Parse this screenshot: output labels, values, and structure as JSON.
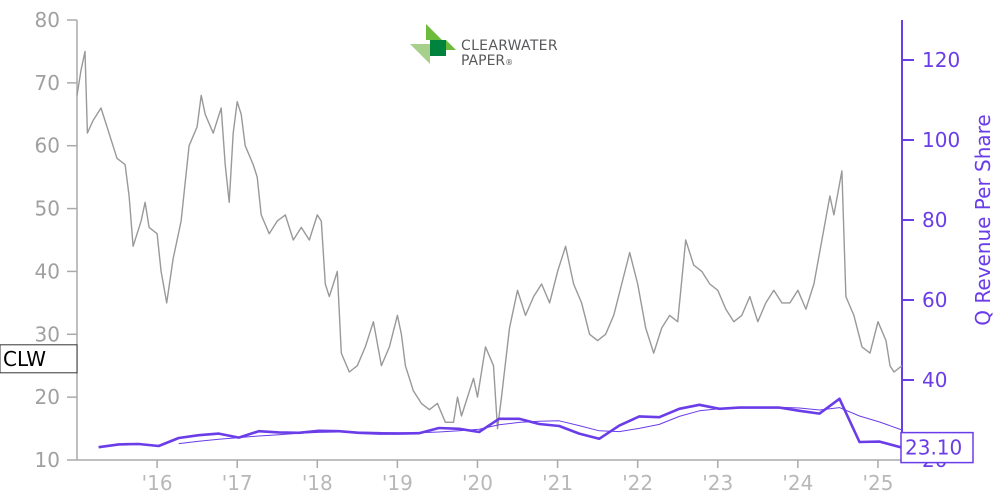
{
  "logo": {
    "line1": "CLEARWATER",
    "line2": "PAPER",
    "mark": "®",
    "colors": [
      "#6cbb3c",
      "#00843d",
      "#a8d08d"
    ]
  },
  "chart_data": {
    "type": "line",
    "ticker_label": "CLW",
    "last_value_label": "23.10",
    "ylabel_right": "Q Revenue Per Share",
    "x_ticks": [
      "'16",
      "'17",
      "'18",
      "'19",
      "'20",
      "'21",
      "'22",
      "'23",
      "'24",
      "'25"
    ],
    "x_tick_years": [
      2016,
      2017,
      2018,
      2019,
      2020,
      2021,
      2022,
      2023,
      2024,
      2025
    ],
    "xlim": [
      2015.0,
      2025.3
    ],
    "y_left": {
      "ylim": [
        10,
        80
      ],
      "ticks": [
        10,
        20,
        30,
        40,
        50,
        60,
        70,
        80
      ]
    },
    "y_right": {
      "ylim": [
        20,
        130
      ],
      "ticks": [
        20,
        40,
        60,
        80,
        100,
        120
      ]
    },
    "colors": {
      "price": "#999999",
      "revenue": "#6a3de8",
      "axis_left": "#aaaaaa",
      "axis_right": "#6a3de8"
    },
    "series": [
      {
        "axis": "left",
        "color": "#999999",
        "points": [
          [
            2015.0,
            68
          ],
          [
            2015.05,
            72
          ],
          [
            2015.1,
            75
          ],
          [
            2015.13,
            62
          ],
          [
            2015.2,
            64
          ],
          [
            2015.3,
            66
          ],
          [
            2015.4,
            62
          ],
          [
            2015.5,
            58
          ],
          [
            2015.6,
            57
          ],
          [
            2015.65,
            52
          ],
          [
            2015.7,
            44
          ],
          [
            2015.8,
            48
          ],
          [
            2015.85,
            51
          ],
          [
            2015.9,
            47
          ],
          [
            2016.0,
            46
          ],
          [
            2016.05,
            40
          ],
          [
            2016.12,
            35
          ],
          [
            2016.2,
            42
          ],
          [
            2016.3,
            48
          ],
          [
            2016.4,
            60
          ],
          [
            2016.5,
            63
          ],
          [
            2016.55,
            68
          ],
          [
            2016.6,
            65
          ],
          [
            2016.7,
            62
          ],
          [
            2016.8,
            66
          ],
          [
            2016.85,
            57
          ],
          [
            2016.9,
            51
          ],
          [
            2016.95,
            62
          ],
          [
            2017.0,
            67
          ],
          [
            2017.05,
            65
          ],
          [
            2017.1,
            60
          ],
          [
            2017.2,
            57
          ],
          [
            2017.25,
            55
          ],
          [
            2017.3,
            49
          ],
          [
            2017.4,
            46
          ],
          [
            2017.5,
            48
          ],
          [
            2017.6,
            49
          ],
          [
            2017.7,
            45
          ],
          [
            2017.8,
            47
          ],
          [
            2017.9,
            45
          ],
          [
            2018.0,
            49
          ],
          [
            2018.05,
            48
          ],
          [
            2018.1,
            38
          ],
          [
            2018.15,
            36
          ],
          [
            2018.2,
            38
          ],
          [
            2018.25,
            40
          ],
          [
            2018.3,
            27
          ],
          [
            2018.4,
            24
          ],
          [
            2018.5,
            25
          ],
          [
            2018.6,
            28
          ],
          [
            2018.7,
            32
          ],
          [
            2018.8,
            25
          ],
          [
            2018.9,
            28
          ],
          [
            2019.0,
            33
          ],
          [
            2019.05,
            30
          ],
          [
            2019.1,
            25
          ],
          [
            2019.15,
            23
          ],
          [
            2019.2,
            21
          ],
          [
            2019.3,
            19
          ],
          [
            2019.4,
            18
          ],
          [
            2019.5,
            19
          ],
          [
            2019.6,
            16
          ],
          [
            2019.7,
            16
          ],
          [
            2019.75,
            20
          ],
          [
            2019.8,
            17
          ],
          [
            2019.9,
            21
          ],
          [
            2019.95,
            23
          ],
          [
            2020.0,
            20
          ],
          [
            2020.1,
            28
          ],
          [
            2020.2,
            25
          ],
          [
            2020.25,
            15
          ],
          [
            2020.3,
            20
          ],
          [
            2020.4,
            31
          ],
          [
            2020.5,
            37
          ],
          [
            2020.6,
            33
          ],
          [
            2020.7,
            36
          ],
          [
            2020.8,
            38
          ],
          [
            2020.9,
            35
          ],
          [
            2021.0,
            40
          ],
          [
            2021.1,
            44
          ],
          [
            2021.2,
            38
          ],
          [
            2021.3,
            35
          ],
          [
            2021.4,
            30
          ],
          [
            2021.5,
            29
          ],
          [
            2021.6,
            30
          ],
          [
            2021.7,
            33
          ],
          [
            2021.8,
            38
          ],
          [
            2021.9,
            43
          ],
          [
            2022.0,
            38
          ],
          [
            2022.1,
            31
          ],
          [
            2022.2,
            27
          ],
          [
            2022.3,
            31
          ],
          [
            2022.4,
            33
          ],
          [
            2022.5,
            32
          ],
          [
            2022.6,
            45
          ],
          [
            2022.7,
            41
          ],
          [
            2022.8,
            40
          ],
          [
            2022.9,
            38
          ],
          [
            2023.0,
            37
          ],
          [
            2023.1,
            34
          ],
          [
            2023.2,
            32
          ],
          [
            2023.3,
            33
          ],
          [
            2023.4,
            36
          ],
          [
            2023.5,
            32
          ],
          [
            2023.6,
            35
          ],
          [
            2023.7,
            37
          ],
          [
            2023.8,
            35
          ],
          [
            2023.9,
            35
          ],
          [
            2024.0,
            37
          ],
          [
            2024.1,
            34
          ],
          [
            2024.2,
            38
          ],
          [
            2024.3,
            45
          ],
          [
            2024.4,
            52
          ],
          [
            2024.45,
            49
          ],
          [
            2024.55,
            56
          ],
          [
            2024.6,
            36
          ],
          [
            2024.7,
            33
          ],
          [
            2024.8,
            28
          ],
          [
            2024.9,
            27
          ],
          [
            2025.0,
            32
          ],
          [
            2025.1,
            29
          ],
          [
            2025.15,
            25
          ],
          [
            2025.2,
            24
          ],
          [
            2025.3,
            25
          ]
        ]
      },
      {
        "axis": "right",
        "color": "#6a3de8",
        "points": [
          [
            2015.27,
            23.2
          ],
          [
            2015.52,
            23.9
          ],
          [
            2015.77,
            24.0
          ],
          [
            2016.02,
            23.5
          ],
          [
            2016.27,
            25.5
          ],
          [
            2016.52,
            26.2
          ],
          [
            2016.77,
            26.6
          ],
          [
            2017.02,
            25.6
          ],
          [
            2017.27,
            27.2
          ],
          [
            2017.52,
            26.9
          ],
          [
            2017.77,
            26.8
          ],
          [
            2018.02,
            27.3
          ],
          [
            2018.27,
            27.2
          ],
          [
            2018.52,
            26.8
          ],
          [
            2018.77,
            26.6
          ],
          [
            2019.02,
            26.6
          ],
          [
            2019.27,
            26.7
          ],
          [
            2019.52,
            28.0
          ],
          [
            2019.77,
            27.8
          ],
          [
            2020.02,
            27.0
          ],
          [
            2020.27,
            30.3
          ],
          [
            2020.52,
            30.3
          ],
          [
            2020.77,
            29.0
          ],
          [
            2021.02,
            28.5
          ],
          [
            2021.27,
            26.6
          ],
          [
            2021.52,
            25.3
          ],
          [
            2021.77,
            28.6
          ],
          [
            2022.02,
            30.9
          ],
          [
            2022.27,
            30.7
          ],
          [
            2022.52,
            32.8
          ],
          [
            2022.77,
            33.8
          ],
          [
            2023.02,
            32.8
          ],
          [
            2023.27,
            33.1
          ],
          [
            2023.52,
            33.1
          ],
          [
            2023.77,
            33.1
          ],
          [
            2024.02,
            32.3
          ],
          [
            2024.27,
            31.6
          ],
          [
            2024.52,
            35.3
          ],
          [
            2024.77,
            24.5
          ],
          [
            2025.02,
            24.6
          ],
          [
            2025.3,
            23.1
          ]
        ]
      },
      {
        "axis": "right",
        "color": "#6a3de8",
        "points": [
          [
            2016.27,
            24.1
          ],
          [
            2016.52,
            24.7
          ],
          [
            2016.77,
            25.2
          ],
          [
            2017.02,
            25.6
          ],
          [
            2017.27,
            26.0
          ],
          [
            2017.52,
            26.3
          ],
          [
            2017.77,
            26.7
          ],
          [
            2018.02,
            26.9
          ],
          [
            2018.27,
            27.0
          ],
          [
            2018.52,
            27.0
          ],
          [
            2018.77,
            26.9
          ],
          [
            2019.02,
            26.8
          ],
          [
            2019.27,
            26.8
          ],
          [
            2019.52,
            27.0
          ],
          [
            2019.77,
            27.3
          ],
          [
            2020.02,
            27.7
          ],
          [
            2020.27,
            28.8
          ],
          [
            2020.52,
            29.4
          ],
          [
            2020.77,
            29.7
          ],
          [
            2021.02,
            29.8
          ],
          [
            2021.27,
            28.6
          ],
          [
            2021.52,
            27.3
          ],
          [
            2021.77,
            27.1
          ],
          [
            2022.02,
            27.9
          ],
          [
            2022.27,
            28.9
          ],
          [
            2022.52,
            30.9
          ],
          [
            2022.77,
            32.3
          ],
          [
            2023.02,
            32.8
          ],
          [
            2023.27,
            33.2
          ],
          [
            2023.52,
            33.2
          ],
          [
            2023.77,
            33.2
          ],
          [
            2024.02,
            33.0
          ],
          [
            2024.27,
            32.5
          ],
          [
            2024.52,
            33.1
          ],
          [
            2024.77,
            31.0
          ],
          [
            2025.02,
            29.5
          ],
          [
            2025.3,
            27.5
          ]
        ]
      }
    ]
  }
}
